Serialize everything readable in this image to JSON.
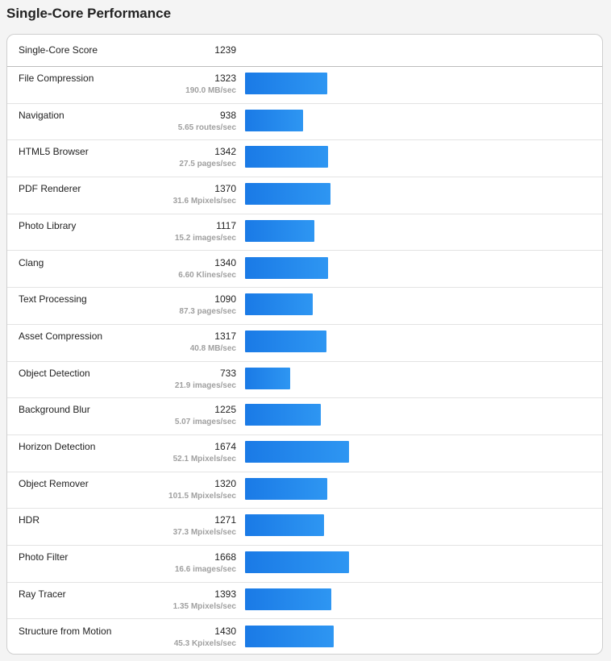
{
  "page": {
    "title": "Single-Core Performance"
  },
  "summary": {
    "label": "Single-Core Score",
    "score": "1239"
  },
  "colors": {
    "bar": "#1a7ae6",
    "bar_end": "#2e96f2"
  },
  "max_score_reference": 1674,
  "tests": [
    {
      "name": "File Compression",
      "score": "1323",
      "unit": "190.0 MB/sec",
      "value": 1323
    },
    {
      "name": "Navigation",
      "score": "938",
      "unit": "5.65 routes/sec",
      "value": 938
    },
    {
      "name": "HTML5 Browser",
      "score": "1342",
      "unit": "27.5 pages/sec",
      "value": 1342
    },
    {
      "name": "PDF Renderer",
      "score": "1370",
      "unit": "31.6 Mpixels/sec",
      "value": 1370
    },
    {
      "name": "Photo Library",
      "score": "1117",
      "unit": "15.2 images/sec",
      "value": 1117
    },
    {
      "name": "Clang",
      "score": "1340",
      "unit": "6.60 Klines/sec",
      "value": 1340
    },
    {
      "name": "Text Processing",
      "score": "1090",
      "unit": "87.3 pages/sec",
      "value": 1090
    },
    {
      "name": "Asset Compression",
      "score": "1317",
      "unit": "40.8 MB/sec",
      "value": 1317
    },
    {
      "name": "Object Detection",
      "score": "733",
      "unit": "21.9 images/sec",
      "value": 733
    },
    {
      "name": "Background Blur",
      "score": "1225",
      "unit": "5.07 images/sec",
      "value": 1225
    },
    {
      "name": "Horizon Detection",
      "score": "1674",
      "unit": "52.1 Mpixels/sec",
      "value": 1674
    },
    {
      "name": "Object Remover",
      "score": "1320",
      "unit": "101.5 Mpixels/sec",
      "value": 1320
    },
    {
      "name": "HDR",
      "score": "1271",
      "unit": "37.3 Mpixels/sec",
      "value": 1271
    },
    {
      "name": "Photo Filter",
      "score": "1668",
      "unit": "16.6 images/sec",
      "value": 1668
    },
    {
      "name": "Ray Tracer",
      "score": "1393",
      "unit": "1.35 Mpixels/sec",
      "value": 1393
    },
    {
      "name": "Structure from Motion",
      "score": "1430",
      "unit": "45.3 Kpixels/sec",
      "value": 1430
    }
  ]
}
